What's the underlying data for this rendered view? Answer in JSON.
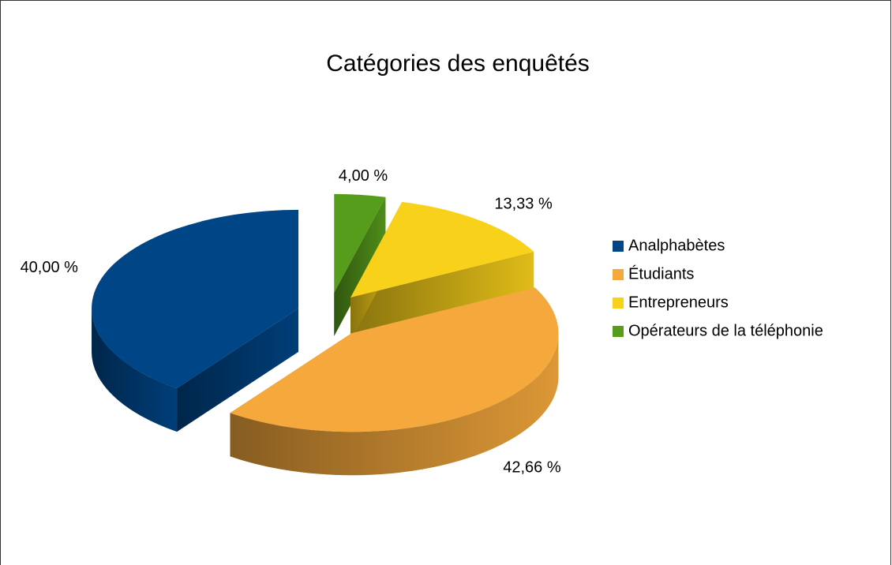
{
  "chart_data": {
    "type": "pie",
    "title": "Catégories des enquêtés",
    "categories": [
      "Analphabètes",
      "Étudiants",
      "Entrepreneurs",
      "Opérateurs de la téléphonie"
    ],
    "values": [
      40,
      42.66,
      13.33,
      4
    ],
    "value_labels": [
      "40,00 %",
      "42,66 %",
      "13,33 %",
      "4,00 %"
    ],
    "colors": [
      "#004586",
      "#f5a83c",
      "#f8d11a",
      "#579d1c"
    ],
    "legend": "right"
  }
}
